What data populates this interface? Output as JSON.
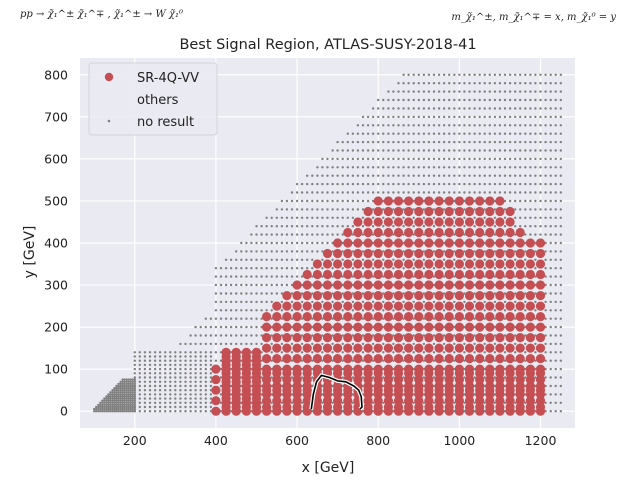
{
  "annotations": {
    "process": "pp → χ̃₁^± χ̃₁^∓ , χ̃₁^± → W χ̃₁⁰",
    "masses": "m_χ̃₁^±, m_χ̃₁^∓ = x, m_χ̃₁⁰ = y"
  },
  "chart_data": {
    "type": "scatter",
    "title": "Best Signal Region, ATLAS-SUSY-2018-41",
    "xlabel": "x [GeV]",
    "ylabel": "y [GeV]",
    "xlim": [
      65,
      1285
    ],
    "ylim": [
      -40,
      840
    ],
    "xticks": [
      200,
      400,
      600,
      800,
      1000,
      1200
    ],
    "yticks": [
      0,
      100,
      200,
      300,
      400,
      500,
      600,
      700,
      800
    ],
    "grid": true,
    "legend_position": "top-left",
    "legend": [
      {
        "label": "SR-4Q-VV",
        "marker": "large-dot",
        "color": "#c44e52"
      },
      {
        "label": "others",
        "marker": "none",
        "color": "none"
      },
      {
        "label": "no result",
        "marker": "small-dot",
        "color": "#808080"
      }
    ],
    "colors": {
      "background": "#eaeaf2",
      "sr": "#c44e52",
      "no_result": "#808080",
      "contour": "#000000"
    },
    "series": [
      {
        "name": "SR-4Q-VV",
        "description_rule": "points on 25 GeV grid with x from 400 to 1200, y from 0 to min(x-300, 500); columns 425-500 start at 0",
        "x_range": [
          400,
          1200
        ],
        "y_max": 500,
        "step": 25
      },
      {
        "name": "no result",
        "x_range": [
          100,
          1250
        ],
        "y_max": 800
      }
    ],
    "contour": {
      "x": [
        635,
        640,
        648,
        660,
        680,
        700,
        720,
        740,
        752,
        758,
        760,
        755
      ],
      "y": [
        5,
        40,
        70,
        85,
        80,
        72,
        70,
        60,
        50,
        35,
        10,
        5
      ]
    }
  }
}
